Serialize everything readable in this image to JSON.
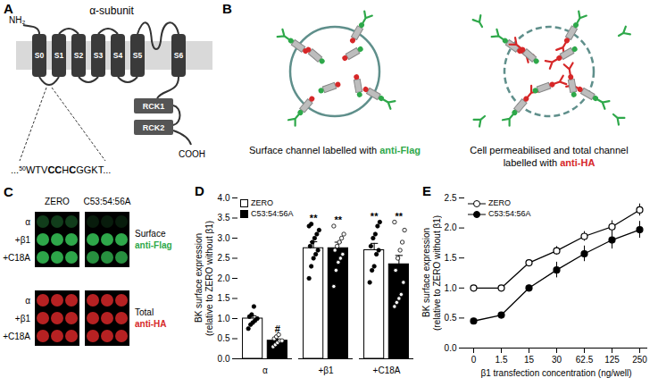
{
  "panels": {
    "A": {
      "label": "A",
      "title": "α-subunit",
      "n_terminus": "NH₂",
      "c_terminus": "COOH",
      "segments": [
        "S0",
        "S1",
        "S2",
        "S3",
        "S4",
        "S5",
        "S6"
      ],
      "domains": [
        "RCK1",
        "RCK2"
      ],
      "sequence": [
        {
          "text": "..."
        },
        {
          "text": "50",
          "sup": true
        },
        {
          "text": "WTV"
        },
        {
          "text": "CC",
          "bold": true
        },
        {
          "text": "H"
        },
        {
          "text": "C",
          "bold": true
        },
        {
          "text": "GGKT..."
        }
      ]
    },
    "B": {
      "label": "B",
      "captions": [
        {
          "lines": [
            [
              {
                "text": "Surface channel labelled with "
              },
              {
                "text": "anti-Flag",
                "color": "#2ea84a",
                "bold": true
              }
            ]
          ]
        },
        {
          "lines": [
            [
              {
                "text": "Cell permeabilised and total channel"
              }
            ],
            [
              {
                "text": "labelled with "
              },
              {
                "text": "anti-HA",
                "color": "#d62728",
                "bold": true
              }
            ]
          ]
        }
      ]
    },
    "C": {
      "label": "C",
      "columns": [
        "ZERO",
        "C53:54:56A"
      ],
      "blocks": [
        {
          "rows": [
            "α",
            "+β1",
            "+C18A"
          ],
          "label": [
            {
              "text": "Surface"
            },
            {
              "text": "anti-Flag",
              "color": "#2ea84a",
              "bold": true
            }
          ]
        },
        {
          "rows": [
            "α",
            "+β1",
            "+C18A"
          ],
          "label": [
            {
              "text": "Total"
            },
            {
              "text": "anti-HA",
              "color": "#d62728",
              "bold": true
            }
          ]
        }
      ]
    }
  },
  "chart_data": [
    {
      "panel": "D",
      "type": "bar",
      "categories": [
        "α",
        "+β1",
        "+C18A"
      ],
      "ylabel": "BK surface expression\n(relative to ZERO without β1)",
      "ylim": [
        0,
        4
      ],
      "yticks": [
        {
          "value": 0,
          "label": "0.0"
        },
        {
          "value": 0.5,
          "label": "0.5"
        },
        {
          "value": 1,
          "label": "1.0"
        },
        {
          "value": 1.5,
          "label": "1.5"
        },
        {
          "value": 2,
          "label": "2.0"
        },
        {
          "value": 2.5,
          "label": "2.5"
        },
        {
          "value": 3,
          "label": "3.0"
        },
        {
          "value": 3.5,
          "label": "3.5"
        },
        {
          "value": 4,
          "label": "4.0"
        }
      ],
      "legend": "top-left",
      "series": [
        {
          "name": "ZERO",
          "color": "#ffffff",
          "values": [
            1.0,
            2.75,
            2.7
          ],
          "errors": [
            0.07,
            0.16,
            0.17
          ],
          "points": [
            [
              0.75,
              0.85,
              0.9,
              0.95,
              1.0,
              1.05,
              1.1,
              1.3
            ],
            [
              2.0,
              2.3,
              2.5,
              2.6,
              2.7,
              2.8,
              2.9,
              3.0,
              3.1,
              3.2,
              3.3,
              3.35
            ],
            [
              1.9,
              2.2,
              2.3,
              2.6,
              2.7,
              2.8,
              3.0,
              3.1,
              3.3,
              3.4
            ]
          ]
        },
        {
          "name": "C53:54:56A",
          "color": "#000000",
          "values": [
            0.45,
            2.75,
            2.35
          ],
          "errors": [
            0.04,
            0.15,
            0.22
          ],
          "points": [
            [
              0.3,
              0.35,
              0.4,
              0.45,
              0.45,
              0.5,
              0.55,
              0.6
            ],
            [
              1.8,
              2.2,
              2.4,
              2.5,
              2.6,
              2.7,
              2.8,
              2.9,
              3.0,
              3.1,
              3.3
            ],
            [
              1.3,
              1.4,
              1.5,
              1.6,
              1.9,
              2.2,
              2.5,
              2.7,
              2.9,
              3.2,
              3.4
            ]
          ]
        }
      ],
      "annotations": [
        {
          "category": "α",
          "series": "C53:54:56A",
          "text": "#"
        },
        {
          "category": "+β1",
          "series": "ZERO",
          "text": "**"
        },
        {
          "category": "+β1",
          "series": "C53:54:56A",
          "text": "**"
        },
        {
          "category": "+C18A",
          "series": "ZERO",
          "text": "**"
        },
        {
          "category": "+C18A",
          "series": "C53:54:56A",
          "text": "**"
        }
      ]
    },
    {
      "panel": "E",
      "type": "line",
      "categories": [
        "0",
        "1.5",
        "15",
        "30",
        "62.5",
        "125",
        "250"
      ],
      "xlabel": "β1 transfection concentration (ng/well)",
      "ylabel": "BK surface expression\n(relative to ZERO without β1)",
      "ylim": [
        0,
        2.5
      ],
      "yticks": [
        {
          "value": 0,
          "label": "0.0"
        },
        {
          "value": 0.5,
          "label": "0.5"
        },
        {
          "value": 1,
          "label": "1.0"
        },
        {
          "value": 1.5,
          "label": "1.5"
        },
        {
          "value": 2,
          "label": "2.0"
        },
        {
          "value": 2.5,
          "label": "2.5"
        }
      ],
      "legend": "top-left",
      "series": [
        {
          "name": "ZERO",
          "color": "#000000",
          "marker": "circle-open",
          "values": [
            1.0,
            1.0,
            1.42,
            1.62,
            1.86,
            2.02,
            2.3
          ],
          "errors": [
            0.02,
            0.02,
            0.04,
            0.07,
            0.08,
            0.1,
            0.1
          ]
        },
        {
          "name": "C53:54:56A",
          "color": "#000000",
          "marker": "circle",
          "values": [
            0.45,
            0.55,
            1.0,
            1.3,
            1.57,
            1.8,
            1.97
          ],
          "errors": [
            0.03,
            0.03,
            0.05,
            0.13,
            0.13,
            0.15,
            0.14
          ]
        }
      ]
    }
  ]
}
